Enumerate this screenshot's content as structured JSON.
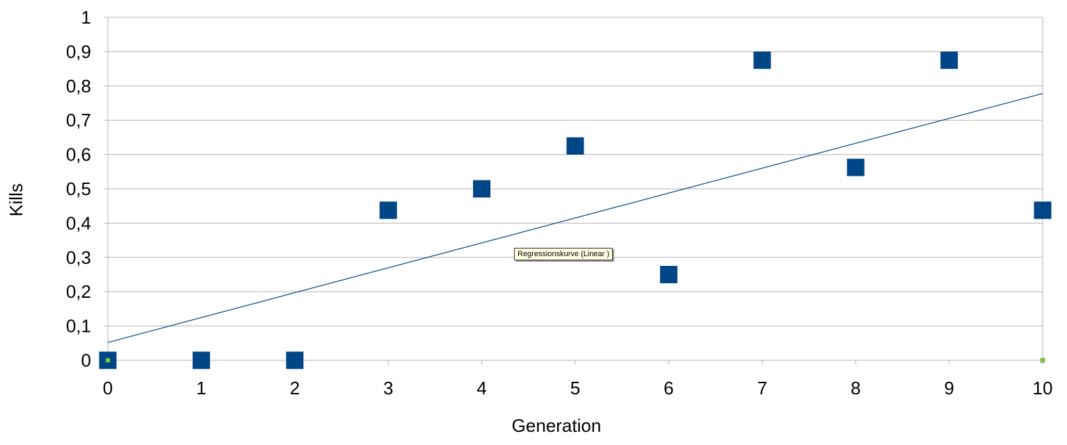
{
  "chart_data": {
    "type": "scatter",
    "title": "",
    "xlabel": "Generation",
    "ylabel": "Kills",
    "xlim": [
      0,
      10
    ],
    "ylim": [
      0,
      1
    ],
    "x_ticks": [
      0,
      1,
      2,
      3,
      4,
      5,
      6,
      7,
      8,
      9,
      10
    ],
    "x_tick_labels": [
      "0",
      "1",
      "2",
      "3",
      "4",
      "5",
      "6",
      "7",
      "8",
      "9",
      "10"
    ],
    "y_ticks": [
      0,
      0.1,
      0.2,
      0.3,
      0.4,
      0.5,
      0.6,
      0.7,
      0.8,
      0.9,
      1
    ],
    "y_tick_labels": [
      "0",
      "0,1",
      "0,2",
      "0,3",
      "0,4",
      "0,5",
      "0,6",
      "0,7",
      "0,8",
      "0,9",
      "1"
    ],
    "grid": "horizontal",
    "series": [
      {
        "x": [
          0,
          1,
          2,
          3,
          4,
          5,
          6,
          7,
          8,
          9,
          10
        ],
        "y": [
          0,
          0,
          0,
          0.4375,
          0.5,
          0.625,
          0.25,
          0.875,
          0.5625,
          0.875,
          0.4375
        ],
        "color": "#004586",
        "marker": "square"
      }
    ],
    "trendline": {
      "type": "linear",
      "y_at_xmin": 0.052,
      "y_at_xmax": 0.778,
      "color": "#004586"
    },
    "tooltip": "Regressionskurve (Linear )",
    "selection_handle_color": "#7fd13b"
  }
}
